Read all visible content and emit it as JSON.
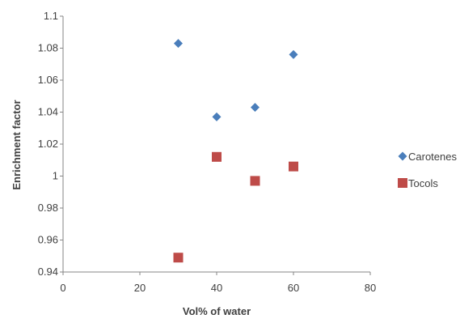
{
  "chart_data": {
    "type": "scatter",
    "title": "",
    "xlabel": "Vol% of water",
    "ylabel": "Enrichment factor",
    "xlim": [
      0,
      80
    ],
    "ylim": [
      0.94,
      1.1
    ],
    "x_ticks": [
      0,
      20,
      40,
      60,
      80
    ],
    "y_ticks": [
      0.94,
      0.96,
      0.98,
      1.0,
      1.02,
      1.04,
      1.06,
      1.08,
      1.1
    ],
    "x_tick_labels": [
      "0",
      "20",
      "40",
      "60",
      "80"
    ],
    "y_tick_labels": [
      "0.94",
      "0.96",
      "0.98",
      "1",
      "1.02",
      "1.04",
      "1.06",
      "1.08",
      "1.1"
    ],
    "grid": false,
    "legend_position": "right",
    "series": [
      {
        "name": "Carotenes",
        "marker": "diamond",
        "color": "#4a7ebb",
        "points": [
          {
            "x": 30,
            "y": 1.083
          },
          {
            "x": 40,
            "y": 1.037
          },
          {
            "x": 50,
            "y": 1.043
          },
          {
            "x": 60,
            "y": 1.076
          }
        ]
      },
      {
        "name": "Tocols",
        "marker": "square",
        "color": "#be4b48",
        "points": [
          {
            "x": 30,
            "y": 0.949
          },
          {
            "x": 40,
            "y": 1.012
          },
          {
            "x": 50,
            "y": 0.997
          },
          {
            "x": 60,
            "y": 1.006
          }
        ]
      }
    ]
  }
}
